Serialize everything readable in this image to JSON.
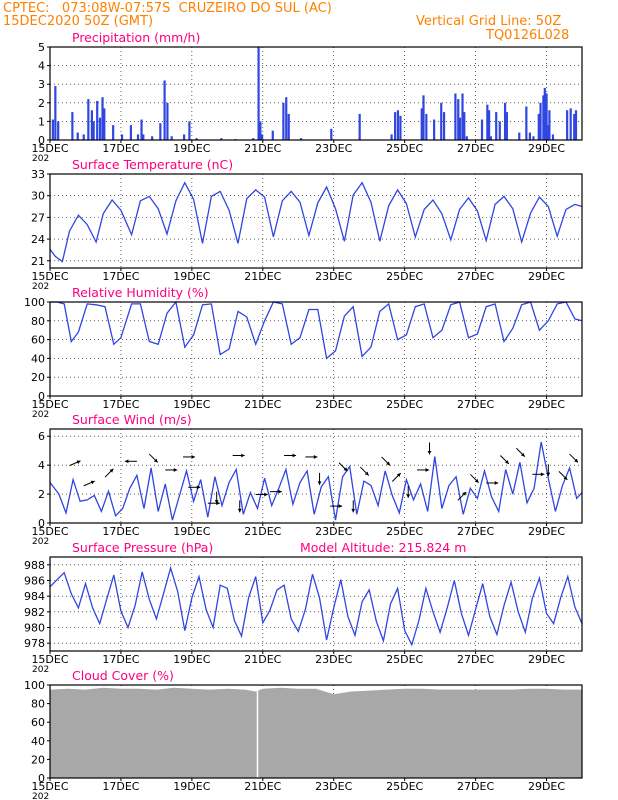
{
  "header": {
    "line1_left": "CPTEC:   073:08W-07:57S  CRUZEIRO DO SUL (AC)",
    "line2_left": "15DEC2020 50Z (GMT)",
    "line2_right": "Vertical Grid Line: 50Z",
    "line3_right": "TQ0126L028"
  },
  "colors": {
    "header": "#ff8000",
    "panel_title": "#ff0080",
    "series": "#3046e0",
    "cloud": "#a8a8a8"
  },
  "x_axis": {
    "tick_labels": [
      "15DEC",
      "17DEC",
      "19DEC",
      "21DEC",
      "23DEC",
      "25DEC",
      "27DEC",
      "29DEC"
    ],
    "start_day": 15,
    "end_day": 30,
    "year_fragment": "202"
  },
  "chart_data": [
    {
      "type": "bar",
      "title": "Precipitation (mm/h)",
      "ylim": [
        0,
        5
      ],
      "yticks": [
        "0",
        "1",
        "2",
        "3",
        "4",
        "5"
      ],
      "bars": [
        [
          15.05,
          1.1
        ],
        [
          15.12,
          2.9
        ],
        [
          15.2,
          1.0
        ],
        [
          15.6,
          1.5
        ],
        [
          15.75,
          0.4
        ],
        [
          15.92,
          0.3
        ],
        [
          16.05,
          2.2
        ],
        [
          16.15,
          1.6
        ],
        [
          16.2,
          1.0
        ],
        [
          16.3,
          2.1
        ],
        [
          16.38,
          1.2
        ],
        [
          16.45,
          2.3
        ],
        [
          16.5,
          1.7
        ],
        [
          16.75,
          0.8
        ],
        [
          17.0,
          0.3
        ],
        [
          17.25,
          0.8
        ],
        [
          17.45,
          0.3
        ],
        [
          17.55,
          1.1
        ],
        [
          17.6,
          0.3
        ],
        [
          17.85,
          0.2
        ],
        [
          18.08,
          0.9
        ],
        [
          18.2,
          3.2
        ],
        [
          18.28,
          2.0
        ],
        [
          18.4,
          0.2
        ],
        [
          18.75,
          0.3
        ],
        [
          18.9,
          1.0
        ],
        [
          19.1,
          0.1
        ],
        [
          19.8,
          0.1
        ],
        [
          20.2,
          0.05
        ],
        [
          20.7,
          0.1
        ],
        [
          20.85,
          5.0
        ],
        [
          20.9,
          1.0
        ],
        [
          20.95,
          0.3
        ],
        [
          21.25,
          0.5
        ],
        [
          21.55,
          2.0
        ],
        [
          21.63,
          2.3
        ],
        [
          21.7,
          1.4
        ],
        [
          22.05,
          0.1
        ],
        [
          22.9,
          0.6
        ],
        [
          23.7,
          1.4
        ],
        [
          24.6,
          0.3
        ],
        [
          24.7,
          1.5
        ],
        [
          24.78,
          1.6
        ],
        [
          24.85,
          1.3
        ],
        [
          25.45,
          1.7
        ],
        [
          25.5,
          2.4
        ],
        [
          25.58,
          1.4
        ],
        [
          25.8,
          1.1
        ],
        [
          26.0,
          2.0
        ],
        [
          26.08,
          1.5
        ],
        [
          26.4,
          2.5
        ],
        [
          26.48,
          2.2
        ],
        [
          26.53,
          1.2
        ],
        [
          26.6,
          2.5
        ],
        [
          26.65,
          1.5
        ],
        [
          26.72,
          0.2
        ],
        [
          27.15,
          1.1
        ],
        [
          27.3,
          1.9
        ],
        [
          27.35,
          1.6
        ],
        [
          27.4,
          0.2
        ],
        [
          27.55,
          1.5
        ],
        [
          27.65,
          1.0
        ],
        [
          27.8,
          2.0
        ],
        [
          27.85,
          1.5
        ],
        [
          28.2,
          0.4
        ],
        [
          28.4,
          1.8
        ],
        [
          28.5,
          0.4
        ],
        [
          28.6,
          0.2
        ],
        [
          28.75,
          1.4
        ],
        [
          28.8,
          2.0
        ],
        [
          28.88,
          2.4
        ],
        [
          28.92,
          2.8
        ],
        [
          28.97,
          2.5
        ],
        [
          29.0,
          0.8
        ],
        [
          29.05,
          1.6
        ],
        [
          29.15,
          0.3
        ],
        [
          29.55,
          1.6
        ],
        [
          29.65,
          1.7
        ],
        [
          29.75,
          1.4
        ],
        [
          29.8,
          1.6
        ]
      ]
    },
    {
      "type": "line",
      "title": "Surface Temperature (nC)",
      "ylim": [
        20,
        33
      ],
      "yticks": [
        "21",
        "24",
        "27",
        "30",
        "33"
      ],
      "x": [
        15,
        15.15,
        15.35,
        15.55,
        15.8,
        16.05,
        16.3,
        16.5,
        16.75,
        17.0,
        17.3,
        17.55,
        17.8,
        18.05,
        18.3,
        18.55,
        18.8,
        19.05,
        19.3,
        19.55,
        19.8,
        20.05,
        20.3,
        20.55,
        20.8,
        21.05,
        21.3,
        21.55,
        21.8,
        22.05,
        22.3,
        22.55,
        22.8,
        23.05,
        23.3,
        23.55,
        23.8,
        24.05,
        24.3,
        24.55,
        24.8,
        25.05,
        25.3,
        25.55,
        25.8,
        26.05,
        26.3,
        26.55,
        26.8,
        27.05,
        27.3,
        27.55,
        27.8,
        28.05,
        28.3,
        28.55,
        28.8,
        29.05,
        29.3,
        29.55,
        29.8,
        30.0
      ],
      "y": [
        22.6,
        21.6,
        20.9,
        25.1,
        27.3,
        26.0,
        23.6,
        27.5,
        29.4,
        28.0,
        24.6,
        29.3,
        29.9,
        28.2,
        24.7,
        29.3,
        31.8,
        29.5,
        23.4,
        29.9,
        30.6,
        28.0,
        23.4,
        29.6,
        30.8,
        29.8,
        24.3,
        29.3,
        30.6,
        29.1,
        24.5,
        29.0,
        31.2,
        28.2,
        23.7,
        30.1,
        31.8,
        29.1,
        23.7,
        28.6,
        30.8,
        28.9,
        24.3,
        28.1,
        29.4,
        27.5,
        23.9,
        28.1,
        29.7,
        27.9,
        23.8,
        28.8,
        29.9,
        28.2,
        23.6,
        27.6,
        29.8,
        28.5,
        24.4,
        28.1,
        28.8,
        28.5
      ]
    },
    {
      "type": "line",
      "title": "Relative Humidity (%)",
      "ylim": [
        0,
        100
      ],
      "yticks": [
        "0",
        "20",
        "40",
        "60",
        "80",
        "100"
      ],
      "x": [
        15,
        15.2,
        15.4,
        15.6,
        15.8,
        16.05,
        16.3,
        16.55,
        16.8,
        17.0,
        17.3,
        17.55,
        17.8,
        18.05,
        18.3,
        18.55,
        18.8,
        19.05,
        19.3,
        19.55,
        19.8,
        20.05,
        20.3,
        20.55,
        20.8,
        21.05,
        21.3,
        21.55,
        21.8,
        22.05,
        22.3,
        22.55,
        22.8,
        23.05,
        23.3,
        23.55,
        23.8,
        24.05,
        24.3,
        24.55,
        24.8,
        25.05,
        25.3,
        25.55,
        25.8,
        26.05,
        26.3,
        26.55,
        26.8,
        27.05,
        27.3,
        27.55,
        27.8,
        28.05,
        28.3,
        28.55,
        28.8,
        29.05,
        29.3,
        29.55,
        29.8,
        30.0
      ],
      "y": [
        100,
        100,
        98,
        58,
        68,
        98,
        97,
        95,
        55,
        62,
        98,
        98,
        58,
        55,
        88,
        100,
        52,
        65,
        97,
        98,
        44,
        50,
        90,
        84,
        55,
        80,
        100,
        98,
        55,
        62,
        92,
        92,
        40,
        48,
        85,
        95,
        42,
        52,
        90,
        98,
        60,
        65,
        95,
        98,
        62,
        70,
        97,
        100,
        62,
        66,
        95,
        98,
        58,
        72,
        97,
        100,
        70,
        80,
        98,
        100,
        82,
        80
      ]
    },
    {
      "type": "line",
      "title": "Surface Wind (m/s)",
      "ylim": [
        0,
        6.5
      ],
      "yticks": [
        "0",
        "2",
        "4",
        "6"
      ],
      "x": [
        15,
        15.25,
        15.45,
        15.65,
        15.85,
        16.05,
        16.25,
        16.45,
        16.65,
        16.85,
        17.05,
        17.25,
        17.45,
        17.65,
        17.85,
        18.05,
        18.25,
        18.45,
        18.65,
        18.85,
        19.05,
        19.25,
        19.45,
        19.65,
        19.85,
        20.05,
        20.25,
        20.45,
        20.65,
        20.85,
        21.05,
        21.25,
        21.45,
        21.65,
        21.85,
        22.05,
        22.25,
        22.45,
        22.65,
        22.85,
        23.05,
        23.25,
        23.45,
        23.65,
        23.85,
        24.05,
        24.25,
        24.45,
        24.65,
        24.85,
        25.05,
        25.25,
        25.45,
        25.65,
        25.85,
        26.05,
        26.25,
        26.45,
        26.65,
        26.85,
        27.05,
        27.25,
        27.45,
        27.65,
        27.85,
        28.05,
        28.25,
        28.45,
        28.65,
        28.85,
        29.05,
        29.25,
        29.45,
        29.65,
        29.85,
        30.0
      ],
      "y": [
        2.8,
        2.0,
        0.7,
        3.0,
        1.5,
        1.6,
        1.9,
        0.8,
        2.2,
        0.5,
        1.0,
        2.4,
        3.3,
        1.0,
        3.8,
        0.8,
        2.7,
        0.2,
        1.9,
        3.6,
        1.5,
        3.0,
        0.4,
        3.2,
        1.2,
        2.8,
        3.7,
        0.6,
        2.1,
        1.0,
        3.1,
        1.2,
        2.4,
        3.7,
        1.3,
        2.8,
        3.6,
        0.6,
        2.5,
        3.2,
        0.2,
        3.2,
        3.9,
        0.6,
        2.9,
        2.6,
        1.2,
        3.6,
        1.9,
        0.7,
        3.0,
        1.6,
        2.7,
        0.8,
        4.6,
        1.0,
        2.6,
        3.2,
        0.6,
        2.4,
        1.7,
        3.6,
        1.8,
        0.8,
        3.7,
        2.0,
        4.2,
        1.4,
        2.4,
        5.6,
        3.1,
        0.8,
        2.6,
        3.8,
        1.7,
        2.1
      ],
      "vectors": [
        [
          15.55,
          "E-NE"
        ],
        [
          15.95,
          "E-NE"
        ],
        [
          16.55,
          "NE"
        ],
        [
          17.45,
          "W"
        ],
        [
          17.8,
          "SE"
        ],
        [
          18.25,
          "E"
        ],
        [
          18.75,
          "E"
        ],
        [
          18.9,
          "E"
        ],
        [
          19.45,
          "E"
        ],
        [
          19.7,
          "S"
        ],
        [
          20.15,
          "E"
        ],
        [
          20.35,
          "S"
        ],
        [
          20.8,
          "E"
        ],
        [
          21.2,
          "E"
        ],
        [
          21.6,
          "E"
        ],
        [
          22.2,
          "E"
        ],
        [
          22.6,
          "S"
        ],
        [
          22.9,
          "E"
        ],
        [
          23.15,
          "SE"
        ],
        [
          23.55,
          "S"
        ],
        [
          23.75,
          "SE"
        ],
        [
          24.35,
          "SE"
        ],
        [
          24.65,
          "NE"
        ],
        [
          25.1,
          "S"
        ],
        [
          25.35,
          "E"
        ],
        [
          25.7,
          "S"
        ],
        [
          26.5,
          "NE"
        ],
        [
          26.85,
          "SE"
        ],
        [
          27.3,
          "E"
        ],
        [
          27.7,
          "SE"
        ],
        [
          28.15,
          "SE"
        ],
        [
          28.6,
          "E"
        ],
        [
          29.05,
          "S"
        ],
        [
          29.35,
          "SE"
        ],
        [
          29.65,
          "SE"
        ]
      ]
    },
    {
      "type": "line",
      "title": "Surface Pressure (hPa)",
      "subtitle": "Model Altitude: 215.824 m",
      "ylim": [
        977,
        989
      ],
      "yticks": [
        "978",
        "980",
        "982",
        "984",
        "986",
        "988"
      ],
      "x": [
        15,
        15.2,
        15.4,
        15.6,
        15.8,
        16.0,
        16.2,
        16.4,
        16.6,
        16.8,
        17.0,
        17.2,
        17.4,
        17.6,
        17.8,
        18.0,
        18.2,
        18.4,
        18.6,
        18.8,
        19.0,
        19.2,
        19.4,
        19.6,
        19.8,
        20.0,
        20.2,
        20.4,
        20.6,
        20.8,
        21.0,
        21.2,
        21.4,
        21.6,
        21.8,
        22.0,
        22.2,
        22.4,
        22.6,
        22.8,
        23.0,
        23.2,
        23.4,
        23.6,
        23.8,
        24.0,
        24.2,
        24.4,
        24.6,
        24.8,
        25.0,
        25.2,
        25.4,
        25.6,
        25.8,
        26.0,
        26.2,
        26.4,
        26.6,
        26.8,
        27.0,
        27.2,
        27.4,
        27.6,
        27.8,
        28.0,
        28.2,
        28.4,
        28.6,
        28.8,
        29.0,
        29.2,
        29.4,
        29.6,
        29.8,
        30.0
      ],
      "y": [
        985.2,
        986.1,
        987.0,
        984.3,
        982.5,
        985.6,
        982.5,
        980.5,
        983.6,
        986.7,
        982.1,
        980.0,
        982.8,
        987.1,
        983.6,
        981.1,
        984.3,
        987.6,
        984.6,
        979.6,
        983.8,
        986.5,
        982.3,
        980.0,
        985.4,
        985.0,
        980.9,
        978.9,
        983.8,
        986.5,
        980.6,
        982.2,
        984.8,
        985.4,
        981.1,
        979.5,
        982.3,
        986.8,
        983.8,
        978.4,
        982.5,
        986.1,
        981.4,
        979.0,
        983.3,
        984.8,
        980.8,
        978.3,
        983.0,
        985.0,
        979.6,
        977.8,
        980.9,
        985.0,
        982.0,
        979.4,
        982.5,
        986.0,
        981.8,
        979.0,
        982.3,
        985.6,
        981.4,
        979.1,
        982.8,
        985.8,
        982.0,
        979.4,
        983.7,
        986.3,
        981.8,
        980.5,
        983.8,
        986.5,
        982.6,
        980.5
      ]
    },
    {
      "type": "area",
      "title": "Cloud Cover (%)",
      "ylim": [
        0,
        100
      ],
      "yticks": [
        "0",
        "20",
        "40",
        "60",
        "80",
        "100"
      ],
      "x": [
        15,
        15.5,
        16.0,
        16.5,
        17.0,
        17.5,
        18.0,
        18.5,
        19.0,
        19.5,
        20.0,
        20.5,
        20.8,
        21.0,
        21.5,
        22.0,
        22.5,
        23.0,
        23.5,
        24.0,
        24.5,
        25.0,
        25.5,
        26.0,
        26.5,
        27.0,
        27.5,
        28.0,
        28.5,
        29.0,
        29.5,
        30.0
      ],
      "y": [
        95,
        96,
        95,
        97,
        96,
        96,
        95,
        97,
        96,
        95,
        96,
        95,
        93,
        96,
        97,
        96,
        96,
        90,
        93,
        94,
        95,
        96,
        96,
        95,
        95,
        95,
        95,
        95,
        96,
        96,
        95,
        95
      ],
      "gap_at": 20.85
    }
  ]
}
